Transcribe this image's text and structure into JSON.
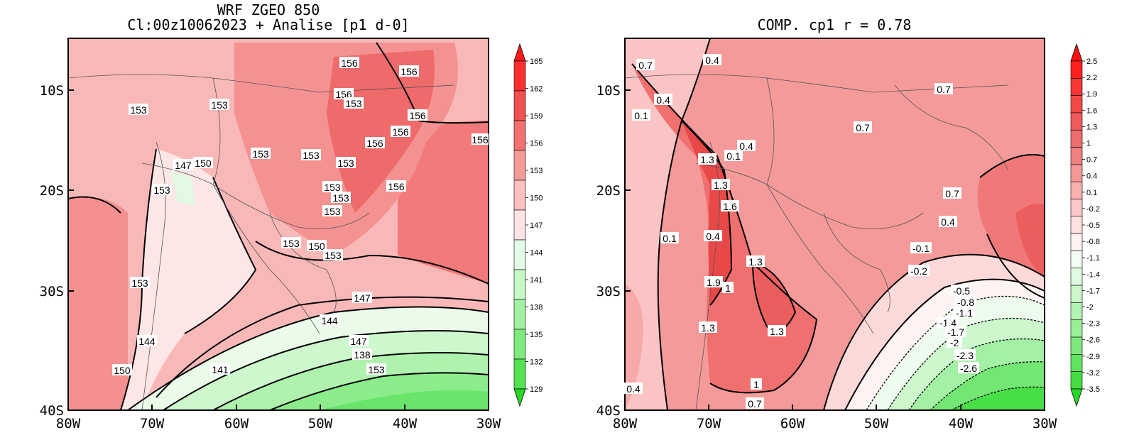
{
  "panels": [
    {
      "title_line1": "WRF ZGEO 850",
      "title_line2": "Cl:00z10062023 + Analise  [p1 d-0]",
      "x_ticks": [
        "80W",
        "70W",
        "60W",
        "50W",
        "40W",
        "30W"
      ],
      "y_ticks": [
        "10S",
        "20S",
        "30S",
        "40S"
      ],
      "colorbar": {
        "labels": [
          "165",
          "162",
          "159",
          "156",
          "153",
          "150",
          "147",
          "144",
          "141",
          "138",
          "135",
          "132",
          "129"
        ],
        "colors": [
          "#ff1818",
          "#ff3030",
          "#f45050",
          "#f27070",
          "#f69a9a",
          "#fbc0c0",
          "#fde4e4",
          "#e6fbe6",
          "#c6f7c6",
          "#a2f1a2",
          "#7eea7e",
          "#52e252",
          "#28d828"
        ]
      },
      "contour_labels": [
        "156",
        "156",
        "153",
        "156",
        "153",
        "156",
        "156",
        "153",
        "156",
        "153",
        "156",
        "147",
        "150",
        "153",
        "153",
        "153",
        "156",
        "153",
        "153",
        "153",
        "153",
        "150",
        "153",
        "153",
        "147",
        "144",
        "147",
        "141",
        "138",
        "153",
        "150",
        "144"
      ]
    },
    {
      "title_line1": "COMP. cp1  r =  0.78",
      "x_ticks": [
        "80W",
        "70W",
        "60W",
        "50W",
        "40W",
        "30W"
      ],
      "y_ticks": [
        "10S",
        "20S",
        "30S",
        "40S"
      ],
      "colorbar": {
        "labels": [
          "2.5",
          "2.2",
          "1.9",
          "1.6",
          "1.3",
          "1",
          "0.7",
          "0.4",
          "0.1",
          "-0.2",
          "-0.5",
          "-0.8",
          "-1.1",
          "-1.4",
          "-1.7",
          "-2",
          "-2.3",
          "-2.6",
          "-2.9",
          "-3.2",
          "-3.5"
        ],
        "colors": [
          "#ff1010",
          "#ff2020",
          "#f83636",
          "#f34848",
          "#f05a5a",
          "#ef6c6c",
          "#f08080",
          "#f49898",
          "#f8b0b0",
          "#fbc8c8",
          "#fde0e0",
          "#fff2f2",
          "#f4fdf4",
          "#e0fae0",
          "#cbf7cb",
          "#b2f3b2",
          "#98ef98",
          "#7de97d",
          "#60e460",
          "#44de44",
          "#28d828"
        ]
      },
      "contour_labels": [
        "0.7",
        "0.4",
        "0.7",
        "0.4",
        "0.1",
        "0.7",
        "1.3",
        "0.4",
        "0.1",
        "1.3",
        "1.6",
        "0.7",
        "0.4",
        "0.1",
        "0.4",
        "-0.1",
        "-0.2",
        "1.3",
        "1.9",
        "1",
        "-0.5",
        "-0.8",
        "-1.1",
        "-1.4",
        "-1.7",
        "1.3",
        "1.3",
        "-2",
        "-2.3",
        "-2.6",
        "0.4",
        "1",
        "0.7"
      ]
    }
  ]
}
